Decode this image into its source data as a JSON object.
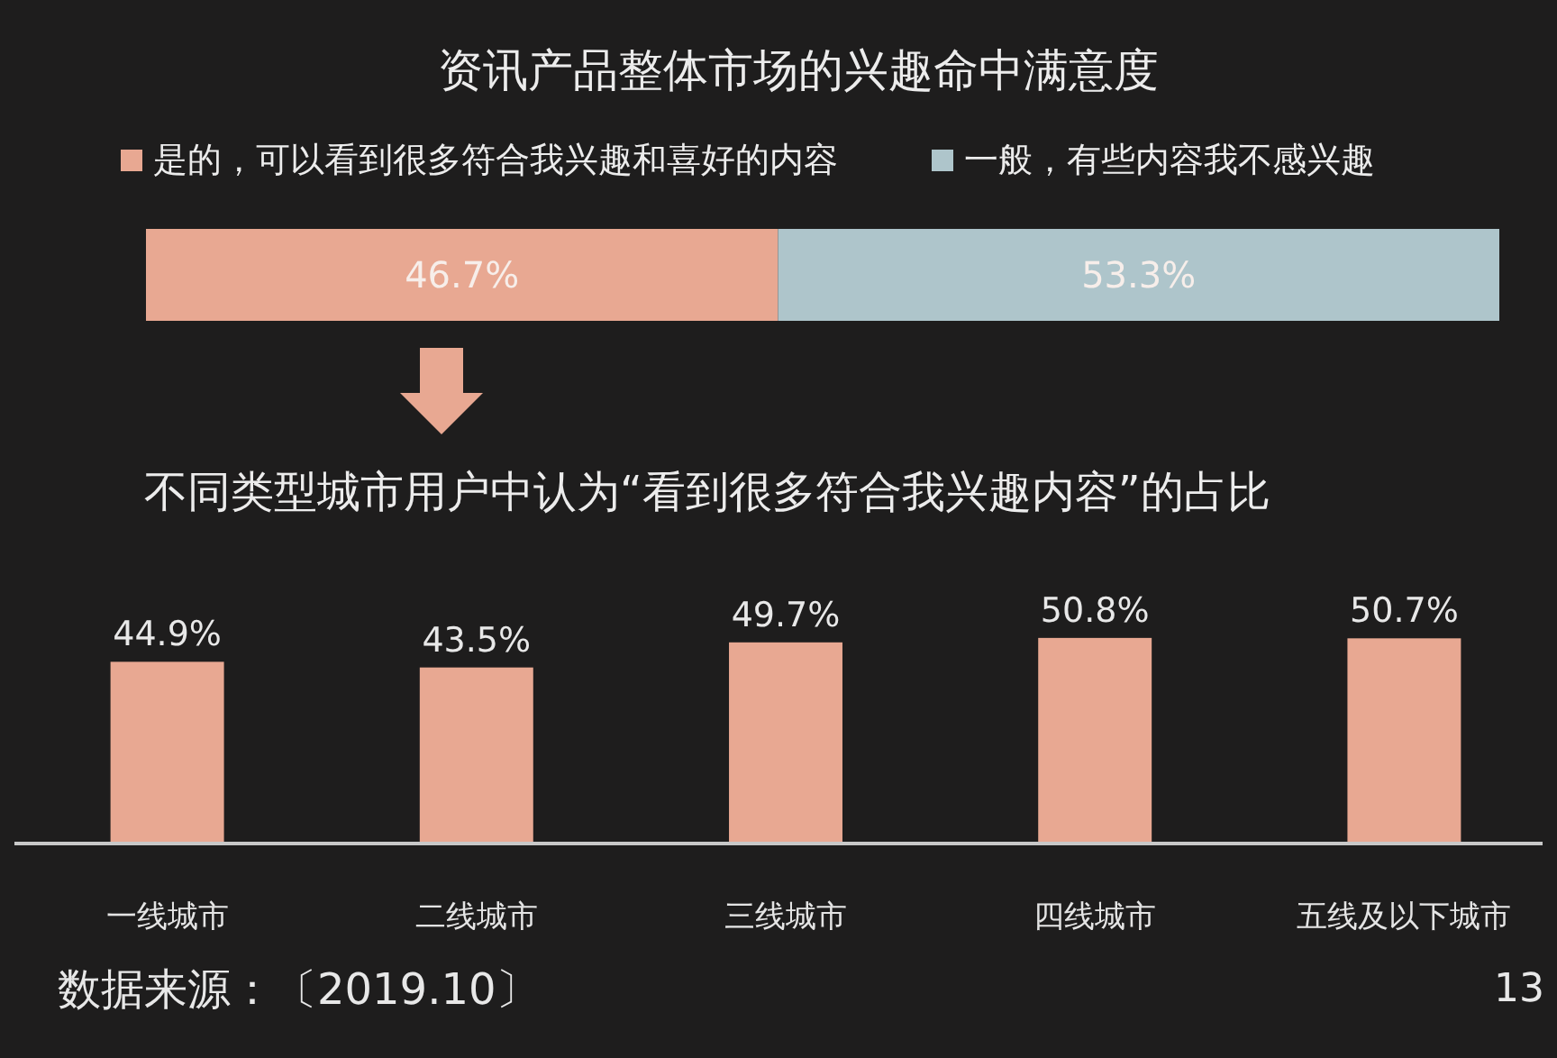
{
  "chart_data": [
    {
      "type": "bar",
      "title": "资讯产品整体市场的兴趣命中满意度",
      "orientation": "horizontal",
      "stacked": true,
      "categories": [
        null
      ],
      "series": [
        {
          "name": "是的，可以看到很多符合我兴趣和喜好的内容",
          "color": "#e8a892",
          "values": [
            46.7
          ],
          "value_labels": [
            "46.7%"
          ]
        },
        {
          "name": "一般，有些内容我不感兴趣",
          "color": "#aec5cb",
          "values": [
            53.3
          ],
          "value_labels": [
            "53.3%"
          ]
        }
      ],
      "xlim": [
        0,
        100
      ],
      "legend": "top",
      "tick_labels": false
    },
    {
      "type": "bar",
      "title": "不同类型城市用户中认为“看到很多符合我兴趣内容”的占比",
      "categories": [
        "一线城市",
        "二线城市",
        "三线城市",
        "四线城市",
        "五线及以下城市"
      ],
      "values": [
        44.9,
        43.5,
        49.7,
        50.8,
        50.7
      ],
      "value_labels": [
        "44.9%",
        "43.5%",
        "49.7%",
        "50.8%",
        "50.7%"
      ],
      "color": "#e8a892",
      "tick_labels": "x",
      "annotations": [
        "数据来源：〔2019.10〕",
        "13"
      ]
    }
  ]
}
